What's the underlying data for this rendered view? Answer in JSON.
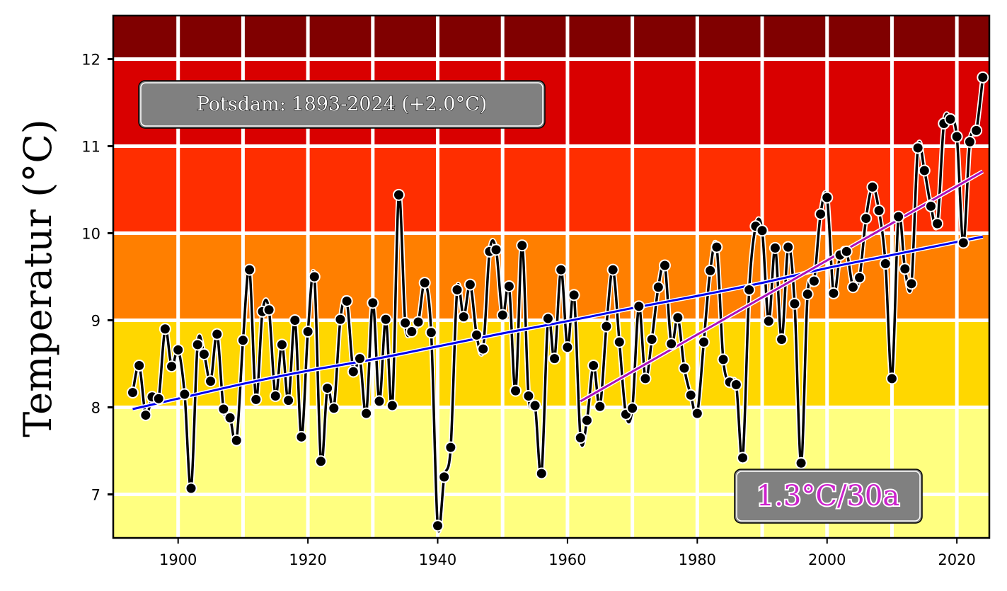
{
  "chart_data": {
    "type": "line",
    "title": "Potsdam: 1893-2024 (+2.0$^\\circ$C)",
    "title_display": "Potsdam: 1893-2024 (+2.0°C)",
    "ylabel": "Temperatur ($^\\circ$C)",
    "ylabel_display": "Temperatur (°C)",
    "xlabel": "",
    "xlim": [
      1890,
      2025
    ],
    "ylim": [
      6.5,
      12.5
    ],
    "xticks": [
      1900,
      1920,
      1940,
      1960,
      1980,
      2000,
      2020
    ],
    "yticks": [
      7,
      8,
      9,
      10,
      11,
      12
    ],
    "grid": true,
    "background_bands": [
      {
        "from": 6.5,
        "to": 8,
        "color": "#ffff80"
      },
      {
        "from": 8,
        "to": 9,
        "color": "#ffd700"
      },
      {
        "from": 9,
        "to": 10,
        "color": "#ff7f00"
      },
      {
        "from": 10,
        "to": 11,
        "color": "#ff2e00"
      },
      {
        "from": 11,
        "to": 12,
        "color": "#d90000"
      },
      {
        "from": 12,
        "to": 12.5,
        "color": "#800000"
      }
    ],
    "trend_annotation": "1.3$^\\circ$C/30a",
    "trend_annotation_display": "1.3°C/30a",
    "series": [
      {
        "style": "line-markers",
        "color": "#000000",
        "x": [
          1893,
          1894,
          1895,
          1896,
          1897,
          1898,
          1899,
          1900,
          1901,
          1902,
          1903,
          1904,
          1905,
          1906,
          1907,
          1908,
          1909,
          1910,
          1911,
          1912,
          1913,
          1914,
          1915,
          1916,
          1917,
          1918,
          1919,
          1920,
          1921,
          1922,
          1923,
          1924,
          1925,
          1926,
          1927,
          1928,
          1929,
          1930,
          1931,
          1932,
          1933,
          1934,
          1935,
          1936,
          1937,
          1938,
          1939,
          1940,
          1941,
          1942,
          1943,
          1944,
          1945,
          1946,
          1947,
          1948,
          1949,
          1950,
          1951,
          1952,
          1953,
          1954,
          1955,
          1956,
          1957,
          1958,
          1959,
          1960,
          1961,
          1962,
          1963,
          1964,
          1965,
          1966,
          1967,
          1968,
          1969,
          1970,
          1971,
          1972,
          1973,
          1974,
          1975,
          1976,
          1977,
          1978,
          1979,
          1980,
          1981,
          1982,
          1983,
          1984,
          1985,
          1986,
          1987,
          1988,
          1989,
          1990,
          1991,
          1992,
          1993,
          1994,
          1995,
          1996,
          1997,
          1998,
          1999,
          2000,
          2001,
          2002,
          2003,
          2004,
          2005,
          2006,
          2007,
          2008,
          2009,
          2010,
          2011,
          2012,
          2013,
          2014,
          2015,
          2016,
          2017,
          2018,
          2019,
          2020,
          2021,
          2022,
          2023,
          2024
        ],
        "y": [
          8.17,
          8.48,
          7.91,
          8.12,
          8.1,
          8.9,
          8.47,
          8.66,
          8.15,
          7.07,
          8.72,
          8.61,
          8.3,
          8.84,
          7.98,
          7.88,
          7.62,
          8.77,
          9.58,
          8.09,
          9.1,
          9.12,
          8.13,
          8.72,
          8.08,
          9.0,
          7.66,
          8.87,
          9.5,
          7.38,
          8.22,
          7.99,
          9.01,
          9.22,
          8.41,
          8.56,
          7.93,
          9.2,
          8.07,
          9.01,
          8.02,
          10.44,
          8.97,
          8.87,
          8.98,
          9.43,
          8.86,
          6.64,
          7.2,
          7.54,
          9.35,
          9.04,
          9.41,
          8.83,
          8.67,
          9.79,
          9.81,
          9.06,
          9.39,
          8.19,
          9.86,
          8.13,
          8.02,
          7.24,
          9.02,
          8.56,
          9.58,
          8.69,
          9.29,
          7.65,
          7.85,
          8.48,
          8.01,
          8.93,
          9.58,
          8.75,
          7.92,
          7.99,
          9.16,
          8.33,
          8.78,
          9.38,
          9.63,
          8.73,
          9.03,
          8.45,
          8.14,
          7.93,
          8.75,
          9.57,
          9.84,
          8.55,
          8.29,
          8.26,
          7.42,
          9.35,
          10.08,
          10.03,
          8.99,
          9.83,
          8.78,
          9.84,
          9.19,
          7.36,
          9.3,
          9.45,
          10.22,
          10.41,
          9.31,
          9.75,
          9.79,
          9.38,
          9.49,
          10.17,
          10.53,
          10.26,
          9.65,
          8.33,
          10.19,
          9.59,
          9.42,
          10.98,
          10.72,
          10.31,
          10.11,
          11.26,
          11.31,
          11.11,
          9.89,
          11.05,
          11.18,
          11.79
        ]
      },
      {
        "style": "line",
        "color": "#0000ee",
        "x": [
          1893,
          1900,
          1910,
          1920,
          1930,
          1940,
          1950,
          1960,
          1970,
          1980,
          1990,
          2000,
          2010,
          2020,
          2024
        ],
        "y": [
          7.98,
          8.1,
          8.27,
          8.42,
          8.55,
          8.7,
          8.85,
          8.99,
          9.14,
          9.28,
          9.43,
          9.6,
          9.75,
          9.9,
          9.96
        ]
      },
      {
        "style": "line",
        "color": "#aa11bb",
        "x": [
          1962,
          2024
        ],
        "y": [
          8.07,
          10.71
        ]
      }
    ]
  }
}
